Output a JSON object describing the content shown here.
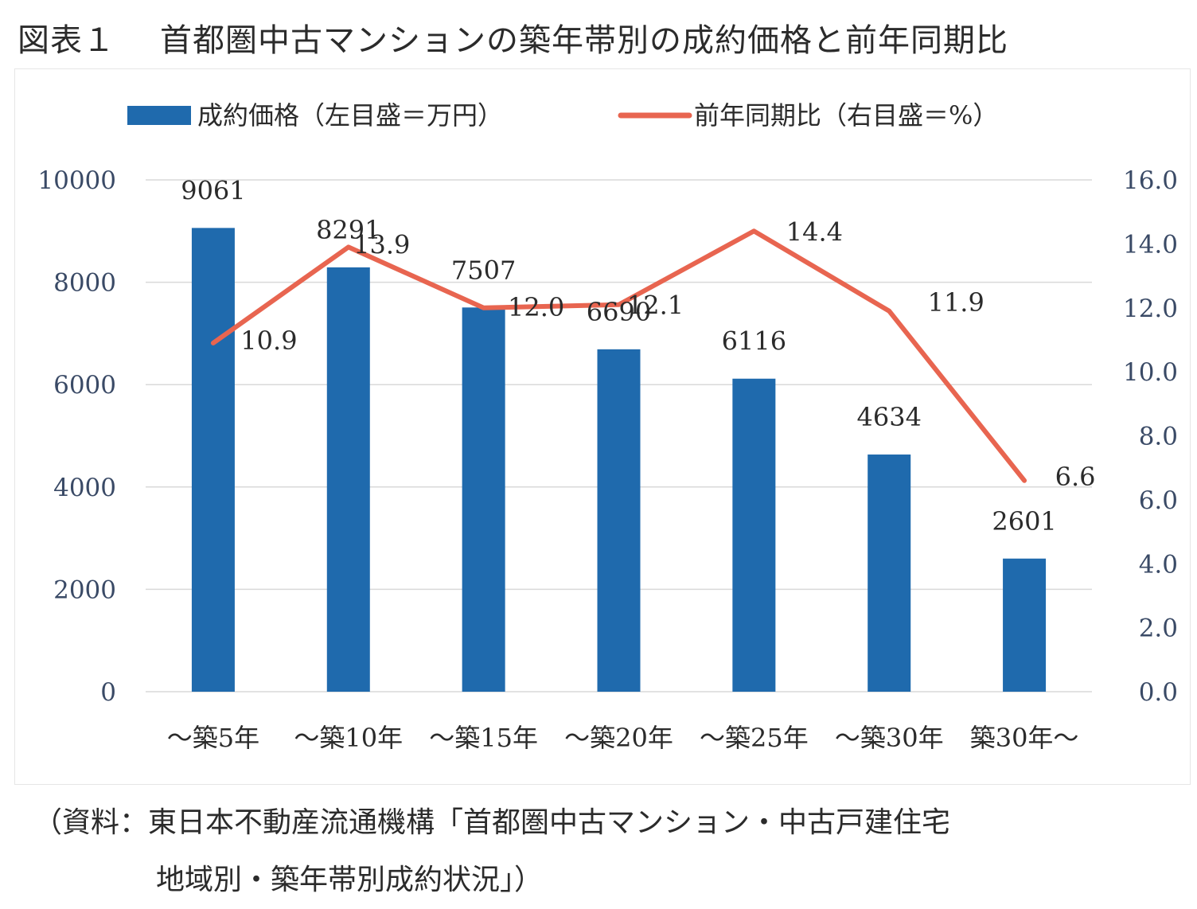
{
  "figure": {
    "number": "図表１",
    "title": "首都圏中古マンションの築年帯別の成約価格と前年同期比"
  },
  "source": {
    "line1": "（資料：東日本不動産流通機構「首都圏中古マンション・中古戸建住宅",
    "line2": "地域別・築年帯別成約状況」）"
  },
  "colors": {
    "bar": "#1f6aad",
    "line": "#e86550",
    "grid": "#d9d9d9"
  },
  "chart_data": {
    "type": "bar",
    "categories": [
      "～築5年",
      "～築10年",
      "～築15年",
      "～築20年",
      "～築25年",
      "～築30年",
      "築30年～"
    ],
    "series": [
      {
        "name": "成約価格（左目盛＝万円）",
        "type": "bar",
        "axis": "left",
        "values": [
          9061,
          8291,
          7507,
          6690,
          6116,
          4634,
          2601
        ]
      },
      {
        "name": "前年同期比（右目盛＝%）",
        "type": "line",
        "axis": "right",
        "values": [
          10.9,
          13.9,
          12.0,
          12.1,
          14.4,
          11.9,
          6.6
        ]
      }
    ],
    "left_axis": {
      "ylim": [
        0,
        10000
      ],
      "ticks": [
        "0",
        "2000",
        "4000",
        "6000",
        "8000",
        "10000"
      ]
    },
    "right_axis": {
      "ylim": [
        0,
        16
      ],
      "ticks": [
        "0.0",
        "2.0",
        "4.0",
        "6.0",
        "8.0",
        "10.0",
        "12.0",
        "14.0",
        "16.0"
      ]
    },
    "bar_labels": [
      "9061",
      "8291",
      "7507",
      "6690",
      "6116",
      "4634",
      "2601"
    ],
    "line_labels": [
      "10.9",
      "13.9",
      "12.0",
      "12.1",
      "14.4",
      "11.9",
      "6.6"
    ],
    "grid": true,
    "legend": "top"
  }
}
